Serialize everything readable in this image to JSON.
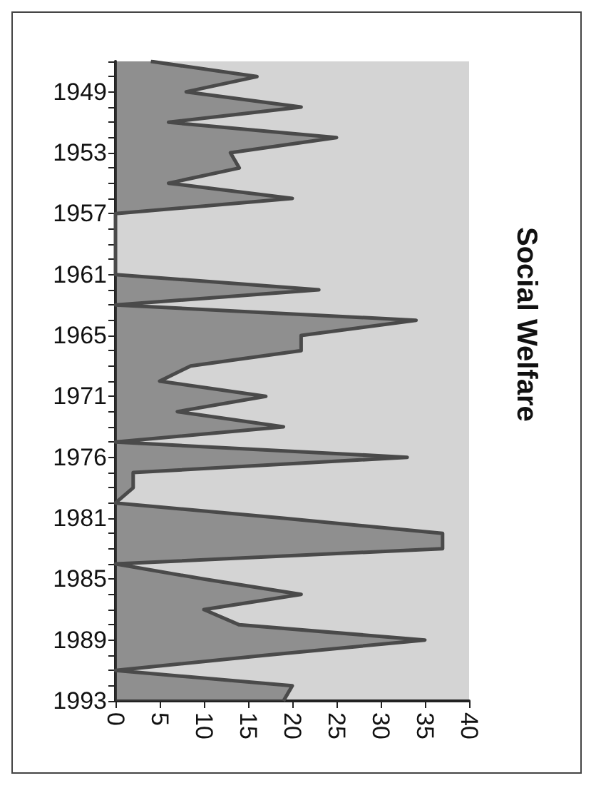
{
  "chart_data": {
    "type": "area",
    "title": "Social Welfare",
    "categories": [
      null,
      null,
      "1949",
      null,
      null,
      null,
      "1953",
      null,
      null,
      null,
      "1957",
      null,
      null,
      null,
      "1961",
      null,
      null,
      null,
      "1965",
      null,
      null,
      null,
      "1971",
      null,
      null,
      null,
      "1976",
      null,
      null,
      null,
      "1981",
      null,
      null,
      null,
      "1985",
      null,
      null,
      null,
      "1989",
      null,
      null,
      null,
      "1993"
    ],
    "values": [
      4,
      16,
      8,
      21,
      6,
      25,
      13,
      14,
      6,
      20,
      0,
      0,
      0,
      0,
      0,
      23,
      0,
      34,
      21,
      21,
      8.5,
      5,
      17,
      7,
      19,
      0,
      33,
      2,
      2,
      0,
      19,
      37,
      37,
      0,
      10,
      21,
      10,
      14,
      35,
      17,
      0,
      20,
      19
    ],
    "color": "#4a4a4a",
    "orientation": "horizontal",
    "xlim": [
      0,
      40
    ],
    "xticks": [
      0,
      5,
      10,
      15,
      20,
      25,
      30,
      35,
      40
    ],
    "grid": false
  }
}
